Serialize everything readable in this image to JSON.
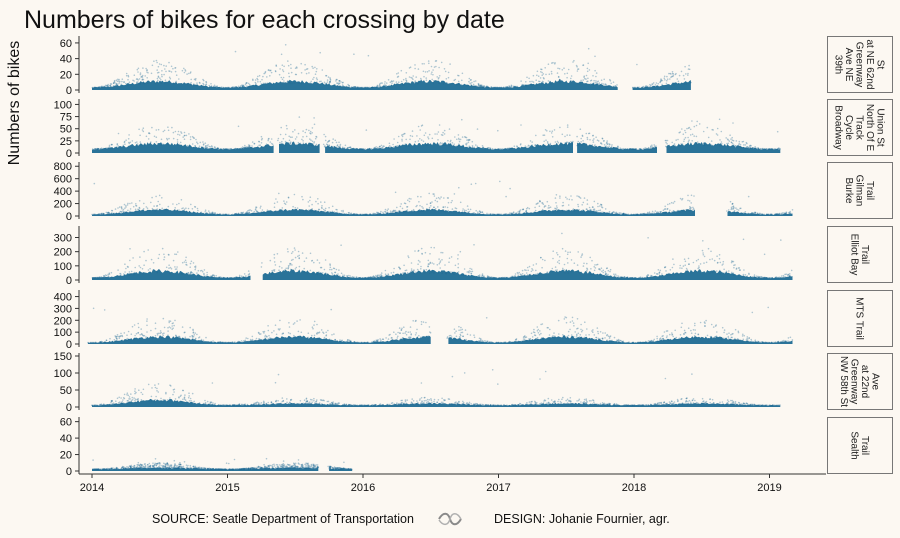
{
  "chart_data": {
    "type": "scatter",
    "title": "Numbers of bikes for each crossing by date",
    "ylabel": "Numbers of bikes",
    "xlabel": "",
    "x_ticks": [
      "2014",
      "2015",
      "2016",
      "2017",
      "2018",
      "2019"
    ],
    "x_range": [
      "2014-01-01",
      "2019-03-31"
    ],
    "grid": false,
    "point_color": "#1f6b94",
    "panels": [
      {
        "name": "39th Ave NE Greenway at NE 62nd St",
        "label_lines": [
          "39th",
          "Ave NE",
          "Greenway",
          "at NE 62nd",
          "St"
        ],
        "ylim": [
          0,
          65
        ],
        "yticks": [
          "0",
          "20",
          "40",
          "60"
        ],
        "ytick_values": [
          0,
          20,
          40,
          60
        ],
        "start": 2014.0,
        "end": 2018.42,
        "base": 3,
        "amp": 18,
        "peak": 60,
        "gaps": [
          [
            2017.88,
            2017.98
          ]
        ]
      },
      {
        "name": "Broadway Cycle Track North Of E Union St",
        "label_lines": [
          "Broadway",
          "Cycle",
          "Track",
          "North Of E",
          "Union St"
        ],
        "ylim": [
          0,
          105
        ],
        "yticks": [
          "0",
          "25",
          "50",
          "75",
          "100"
        ],
        "ytick_values": [
          0,
          25,
          50,
          75,
          100
        ],
        "start": 2014.0,
        "end": 2019.08,
        "base": 8,
        "amp": 26,
        "peak": 75,
        "gaps": [
          [
            2015.34,
            2015.37
          ],
          [
            2015.68,
            2015.71
          ],
          [
            2017.55,
            2017.57
          ],
          [
            2018.17,
            2018.23
          ]
        ]
      },
      {
        "name": "Burke Gilman Trail",
        "label_lines": [
          "Burke",
          "Gilman",
          "Trail"
        ],
        "ylim": [
          0,
          820
        ],
        "yticks": [
          "0",
          "200",
          "400",
          "600",
          "800"
        ],
        "ytick_values": [
          0,
          200,
          400,
          600,
          800
        ],
        "start": 2014.0,
        "end": 2019.17,
        "base": 25,
        "amp": 170,
        "peak": 560,
        "gaps": [
          [
            2018.45,
            2018.68
          ]
        ]
      },
      {
        "name": "Elliot Bay Trail",
        "label_lines": [
          "Elliot Bay",
          "Trail"
        ],
        "ylim": [
          0,
          360
        ],
        "yticks": [
          "0",
          "100",
          "200",
          "300"
        ],
        "ytick_values": [
          0,
          100,
          200,
          300
        ],
        "start": 2014.0,
        "end": 2019.17,
        "base": 15,
        "amp": 110,
        "peak": 330,
        "gaps": [
          [
            2015.17,
            2015.25
          ]
        ]
      },
      {
        "name": "MTS Trail",
        "label_lines": [
          "MTS Trail"
        ],
        "ylim": [
          0,
          430
        ],
        "yticks": [
          "0",
          "100",
          "200",
          "300",
          "400"
        ],
        "ytick_values": [
          0,
          100,
          200,
          300,
          400
        ],
        "start": 2013.97,
        "end": 2019.17,
        "base": 12,
        "amp": 110,
        "peak": 330,
        "gaps": [
          [
            2016.5,
            2016.62
          ]
        ]
      },
      {
        "name": "NW 58th St Greenway at 22nd Ave",
        "label_lines": [
          "NW 58th St",
          "Greenway",
          "at 22nd",
          "Ave"
        ],
        "ylim": [
          0,
          150
        ],
        "yticks": [
          "0",
          "50",
          "100",
          "150"
        ],
        "ytick_values": [
          0,
          50,
          100,
          150
        ],
        "start": 2014.0,
        "end": 2019.08,
        "base": 5,
        "amp": 12,
        "peak": 110,
        "gaps": [],
        "early_end": 2015.1,
        "early_amp": 35
      },
      {
        "name": "Sealth Trail",
        "label_lines": [
          "Sealth",
          "Trail"
        ],
        "ylim": [
          0,
          62
        ],
        "yticks": [
          "0",
          "20",
          "40",
          "60"
        ],
        "ytick_values": [
          0,
          20,
          40,
          60
        ],
        "start": 2014.0,
        "end": 2015.92,
        "base": 2,
        "amp": 4,
        "peak": 15,
        "gaps": [
          [
            2015.67,
            2015.74
          ]
        ]
      }
    ]
  },
  "footer": {
    "source": "SOURCE: Seatle Department of Transportation",
    "design": "DESIGN: Johanie Fournier, agr."
  }
}
